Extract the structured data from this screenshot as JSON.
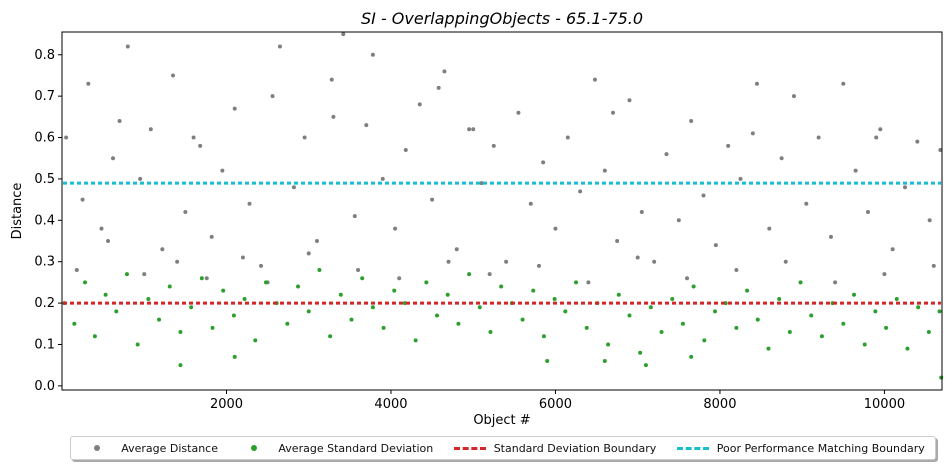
{
  "chart_data": {
    "type": "scatter",
    "title": "SI - OverlappingObjects - 65.1-75.0",
    "xlabel": "Object #",
    "ylabel": "Distance",
    "xlim": [
      0,
      10700
    ],
    "ylim": [
      -0.01,
      0.855
    ],
    "x_ticks": [
      2000,
      4000,
      6000,
      8000,
      10000
    ],
    "x_tick_labels": [
      "2000",
      "4000",
      "6000",
      "8000",
      "10000"
    ],
    "y_ticks": [
      0.0,
      0.1,
      0.2,
      0.3,
      0.4,
      0.5,
      0.6,
      0.7,
      0.8
    ],
    "y_tick_labels": [
      "0.0",
      "0.1",
      "0.2",
      "0.3",
      "0.4",
      "0.5",
      "0.6",
      "0.7",
      "0.8"
    ],
    "grid": false,
    "legend_position": "bottom-center",
    "series": [
      {
        "name": "Average Distance",
        "kind": "scatter",
        "color": "#7f7f7f",
        "x": [
          50,
          250,
          320,
          480,
          620,
          800,
          950,
          1080,
          1220,
          1350,
          1500,
          1680,
          1820,
          1950,
          2100,
          2280,
          2420,
          2560,
          2650,
          2820,
          2950,
          3100,
          3280,
          3420,
          3560,
          3700,
          3780,
          3900,
          4050,
          4180,
          4350,
          4500,
          4580,
          4650,
          4800,
          4950,
          5100,
          5250,
          5400,
          5550,
          5700,
          5850,
          6000,
          6150,
          6300,
          6480,
          6600,
          6750,
          6900,
          7050,
          7200,
          7350,
          7500,
          7650,
          7800,
          7950,
          8100,
          8250,
          8450,
          8600,
          8750,
          8900,
          9050,
          9200,
          9350,
          9500,
          9650,
          9800,
          9950,
          10100,
          10250,
          10400,
          10550,
          10680,
          180,
          560,
          1000,
          1400,
          1760,
          2200,
          2500,
          3000,
          3600,
          4100,
          4700,
          5200,
          5800,
          6400,
          7000,
          7600,
          8200,
          8800,
          9400,
          10000,
          10600,
          700,
          1600,
          3300,
          5000,
          6700,
          8400,
          9900
        ],
        "y": [
          0.6,
          0.45,
          0.73,
          0.38,
          0.55,
          0.82,
          0.5,
          0.62,
          0.33,
          0.75,
          0.42,
          0.58,
          0.36,
          0.52,
          0.67,
          0.44,
          0.29,
          0.7,
          0.82,
          0.48,
          0.6,
          0.35,
          0.74,
          0.85,
          0.41,
          0.63,
          0.8,
          0.5,
          0.38,
          0.57,
          0.68,
          0.45,
          0.72,
          0.76,
          0.33,
          0.62,
          0.49,
          0.58,
          0.3,
          0.66,
          0.44,
          0.54,
          0.38,
          0.6,
          0.47,
          0.74,
          0.52,
          0.35,
          0.69,
          0.42,
          0.3,
          0.56,
          0.4,
          0.64,
          0.46,
          0.34,
          0.58,
          0.5,
          0.73,
          0.38,
          0.55,
          0.7,
          0.44,
          0.6,
          0.36,
          0.73,
          0.52,
          0.42,
          0.62,
          0.33,
          0.48,
          0.59,
          0.4,
          0.57,
          0.28,
          0.35,
          0.27,
          0.3,
          0.26,
          0.31,
          0.25,
          0.32,
          0.28,
          0.26,
          0.3,
          0.27,
          0.29,
          0.25,
          0.31,
          0.26,
          0.28,
          0.3,
          0.25,
          0.27,
          0.29,
          0.64,
          0.6,
          0.65,
          0.62,
          0.66,
          0.61,
          0.6
        ]
      },
      {
        "name": "Average Standard Deviation",
        "kind": "scatter",
        "color": "#2ca02c",
        "x": [
          30,
          150,
          280,
          400,
          530,
          660,
          790,
          920,
          1050,
          1180,
          1310,
          1440,
          1570,
          1700,
          1830,
          1960,
          2090,
          2220,
          2350,
          2480,
          2610,
          2740,
          2870,
          3000,
          3130,
          3260,
          3390,
          3520,
          3650,
          3780,
          3910,
          4040,
          4170,
          4300,
          4430,
          4560,
          4690,
          4820,
          4950,
          5080,
          5210,
          5340,
          5470,
          5600,
          5730,
          5860,
          5990,
          6120,
          6250,
          6380,
          6510,
          6640,
          6770,
          6900,
          7030,
          7160,
          7290,
          7420,
          7550,
          7680,
          7810,
          7940,
          8070,
          8200,
          8330,
          8460,
          8590,
          8720,
          8850,
          8980,
          9110,
          9240,
          9370,
          9500,
          9630,
          9760,
          9890,
          10020,
          10150,
          10280,
          10410,
          10540,
          10670,
          1440,
          2100,
          5900,
          6600,
          7100,
          7650,
          10690
        ],
        "y": [
          0.2,
          0.15,
          0.25,
          0.12,
          0.22,
          0.18,
          0.27,
          0.1,
          0.21,
          0.16,
          0.24,
          0.13,
          0.19,
          0.26,
          0.14,
          0.23,
          0.17,
          0.21,
          0.11,
          0.25,
          0.2,
          0.15,
          0.24,
          0.18,
          0.28,
          0.12,
          0.22,
          0.16,
          0.26,
          0.19,
          0.14,
          0.23,
          0.2,
          0.11,
          0.25,
          0.17,
          0.22,
          0.15,
          0.27,
          0.19,
          0.13,
          0.24,
          0.2,
          0.16,
          0.23,
          0.12,
          0.21,
          0.18,
          0.25,
          0.14,
          0.2,
          0.1,
          0.22,
          0.17,
          0.08,
          0.19,
          0.13,
          0.21,
          0.15,
          0.24,
          0.11,
          0.18,
          0.2,
          0.14,
          0.23,
          0.16,
          0.09,
          0.21,
          0.13,
          0.25,
          0.17,
          0.12,
          0.2,
          0.15,
          0.22,
          0.1,
          0.18,
          0.14,
          0.21,
          0.09,
          0.19,
          0.13,
          0.18,
          0.05,
          0.07,
          0.06,
          0.06,
          0.05,
          0.07,
          0.02
        ]
      },
      {
        "name": "Standard Deviation Boundary",
        "kind": "hline",
        "color": "#d62728",
        "y": 0.2
      },
      {
        "name": "Poor Performance Matching Boundary",
        "kind": "hline",
        "color": "#17becf",
        "y": 0.49
      }
    ]
  }
}
